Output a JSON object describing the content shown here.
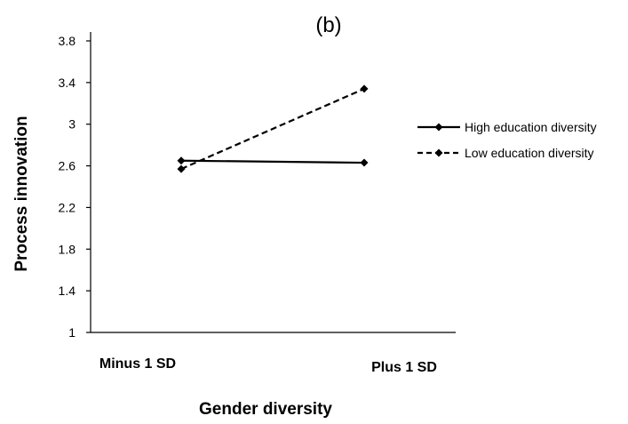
{
  "chart_data": {
    "type": "line",
    "title": "(b)",
    "xlabel": "Gender diversity",
    "ylabel": "Process  innovation",
    "categories": [
      "Minus 1 SD",
      "Plus 1 SD"
    ],
    "ylim": [
      1,
      3.8
    ],
    "yticks": [
      "1",
      "1.4",
      "1.8",
      "2.2",
      "2.6",
      "3",
      "3.4",
      "3.8"
    ],
    "grid": false,
    "legend_position": "right",
    "series": [
      {
        "name": "High education diversity",
        "values": [
          2.65,
          2.63
        ],
        "line_style": "solid",
        "marker": "diamond",
        "color": "#000000"
      },
      {
        "name": "Low education diversity",
        "values": [
          2.57,
          3.34
        ],
        "line_style": "dashed",
        "marker": "diamond",
        "color": "#000000"
      }
    ]
  }
}
